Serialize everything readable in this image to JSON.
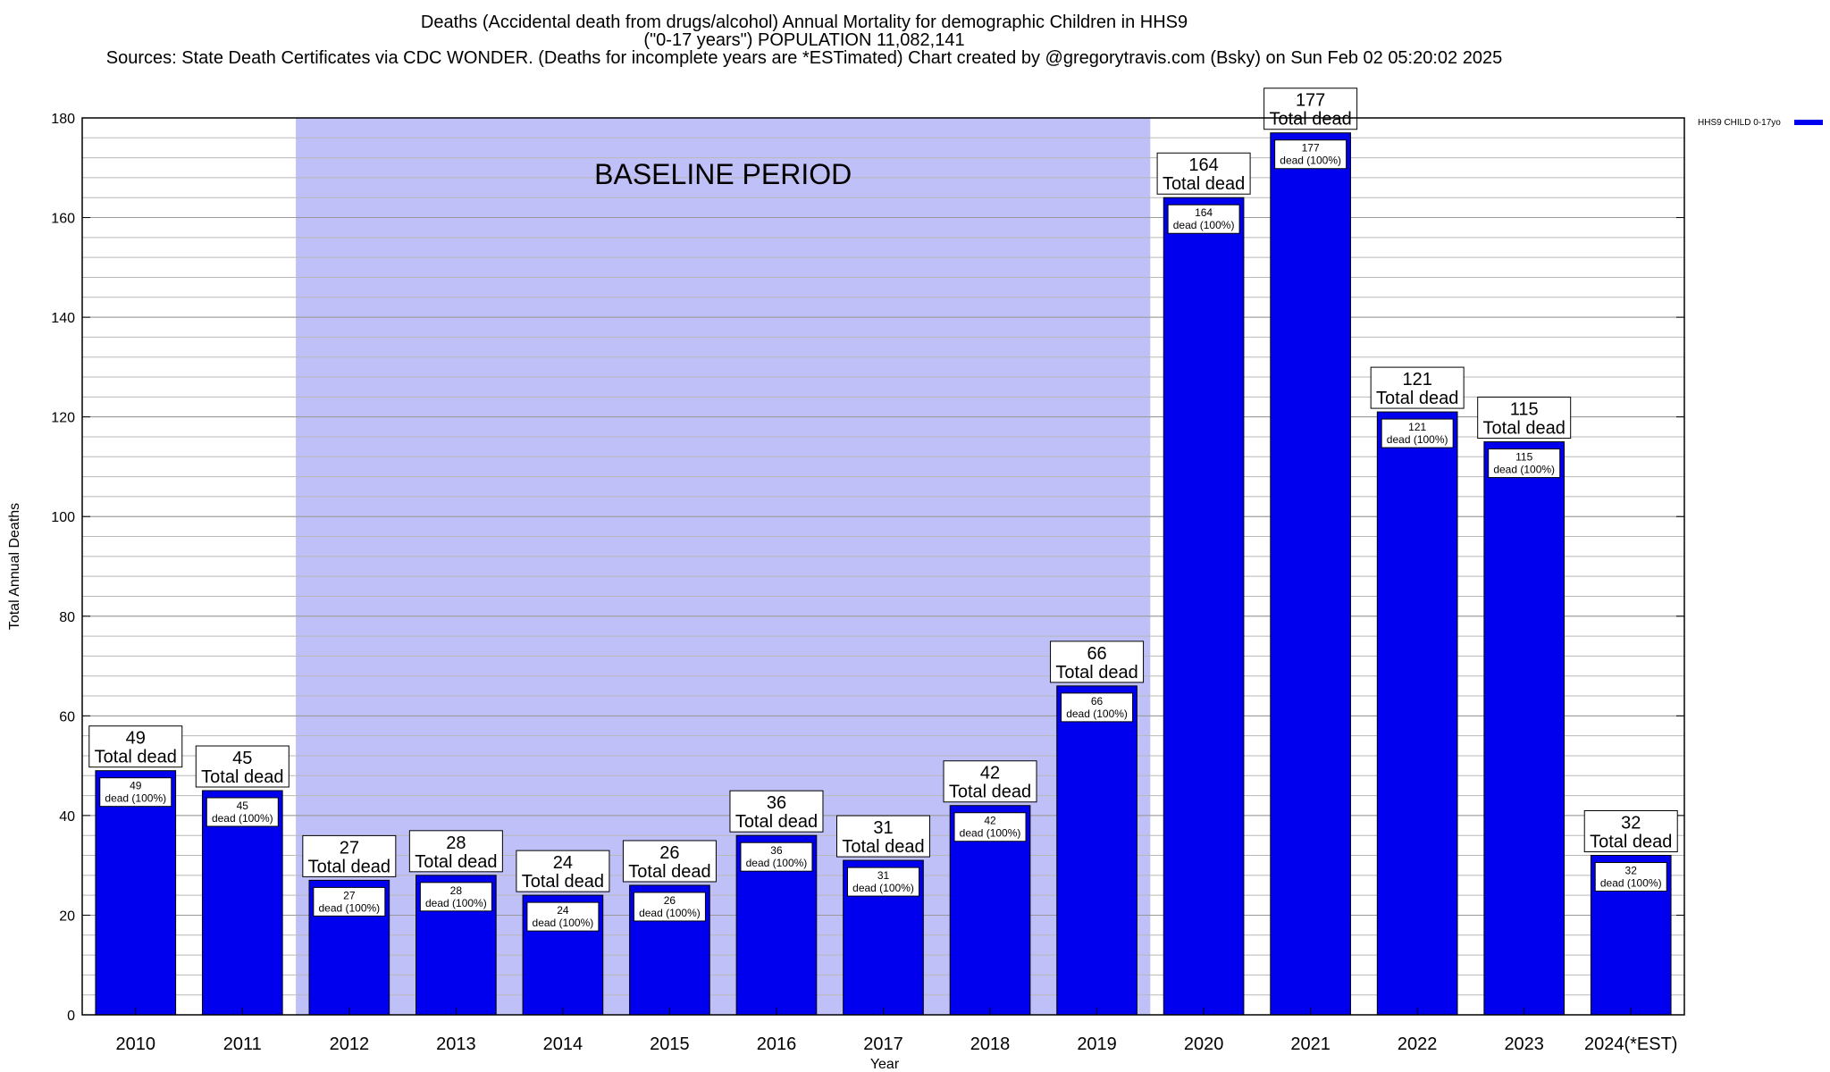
{
  "title_lines": [
    "Deaths (Accidental death from drugs/alcohol) Annual Mortality for demographic Children in HHS9",
    "(\"0-17 years\") POPULATION 11,082,141",
    "Sources: State Death Certificates via CDC WONDER. (Deaths for incomplete years are *ESTimated)                Chart created by @gregorytravis.com (Bsky) on Sun Feb 02 05:20:02 2025"
  ],
  "chart_data": {
    "type": "bar",
    "categories": [
      "2010",
      "2011",
      "2012",
      "2013",
      "2014",
      "2015",
      "2016",
      "2017",
      "2018",
      "2019",
      "2020",
      "2021",
      "2022",
      "2023",
      "2024(*EST)"
    ],
    "series": [
      {
        "name": "HHS9 CHILD 0-17yo",
        "color": "#0000ee",
        "values": [
          49,
          45,
          27,
          28,
          24,
          26,
          36,
          31,
          42,
          66,
          164,
          177,
          121,
          115,
          32
        ]
      }
    ],
    "top_label_suffix": "Total dead",
    "inner_label_suffix": "dead (100%)",
    "xlabel": "Year",
    "ylabel": "Total Annual Deaths",
    "ylim": [
      0,
      180
    ],
    "y_ticks": [
      0,
      20,
      40,
      60,
      80,
      100,
      120,
      140,
      160,
      180
    ],
    "grid": true,
    "legend_position": "top-right",
    "shaded_region": {
      "label": "BASELINE PERIOD",
      "from_category": "2012",
      "to_category": "2019",
      "color": "#c0c0f8"
    }
  }
}
